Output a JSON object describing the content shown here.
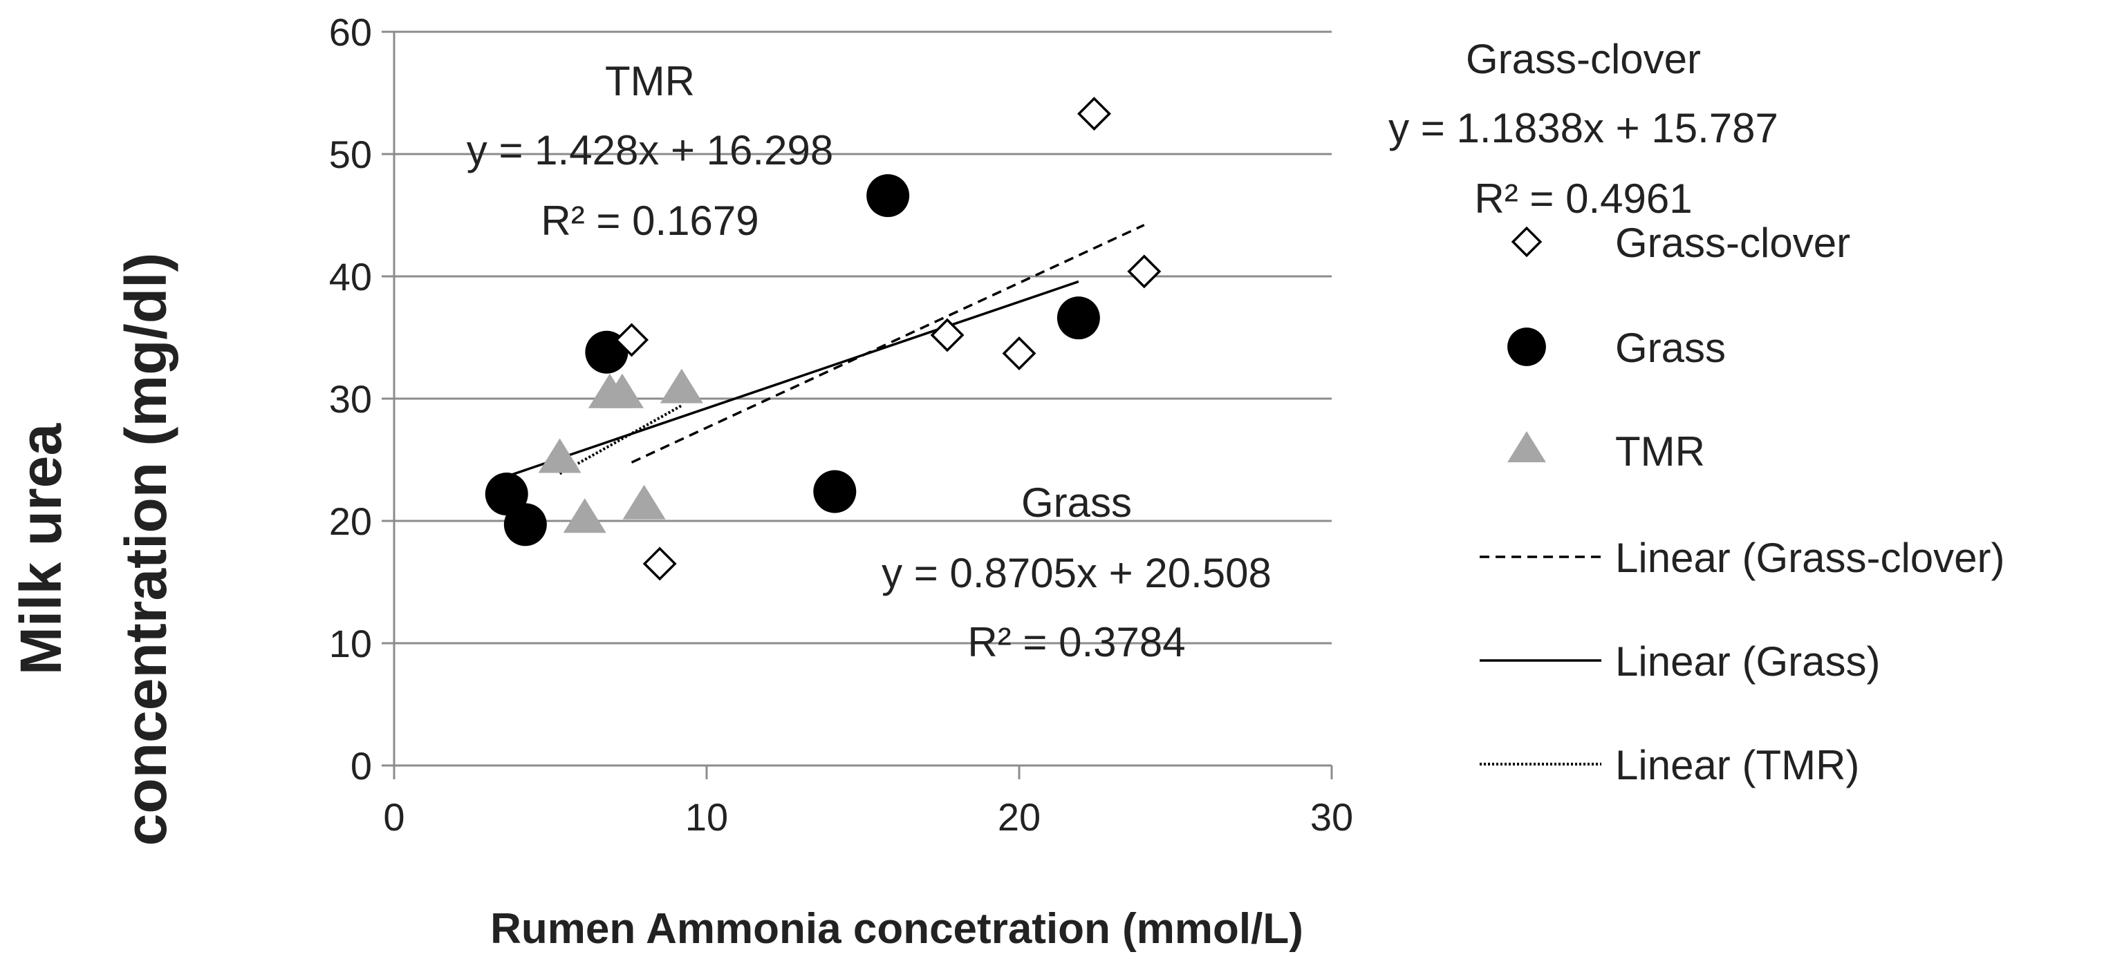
{
  "chart_data": {
    "type": "scatter",
    "title": "",
    "xlabel": "Rumen Ammonia concetration (mmol/L)",
    "ylabel_line1": "Milk urea",
    "ylabel_line2": "concentration (mg/dl)",
    "xlim": [
      0,
      30
    ],
    "ylim": [
      0,
      60
    ],
    "xticks": [
      0,
      10,
      20,
      30
    ],
    "yticks": [
      0,
      10,
      20,
      30,
      40,
      50,
      60
    ],
    "grid": "horizontal",
    "legend_position": "right",
    "series": [
      {
        "name": "Grass-clover",
        "marker": "diamond-open",
        "points": [
          [
            7.6,
            34.8
          ],
          [
            8.5,
            16.5
          ],
          [
            17.7,
            35.2
          ],
          [
            20.0,
            33.7
          ],
          [
            22.4,
            53.3
          ],
          [
            24.0,
            40.4
          ]
        ],
        "trend": {
          "label": "Linear (Grass-clover)",
          "style": "dashed",
          "slope": 1.1838,
          "intercept": 15.787,
          "x_range": [
            7.6,
            24.0
          ]
        }
      },
      {
        "name": "Grass",
        "marker": "circle-filled",
        "points": [
          [
            3.6,
            22.2
          ],
          [
            4.2,
            19.7
          ],
          [
            6.8,
            33.8
          ],
          [
            14.1,
            22.4
          ],
          [
            15.8,
            46.6
          ],
          [
            21.9,
            36.6
          ]
        ],
        "trend": {
          "label": "Linear (Grass)",
          "style": "solid",
          "slope": 0.8705,
          "intercept": 20.508,
          "x_range": [
            3.6,
            21.9
          ]
        }
      },
      {
        "name": "TMR",
        "marker": "triangle-gray",
        "points": [
          [
            5.3,
            25.0
          ],
          [
            6.1,
            20.1
          ],
          [
            6.9,
            30.3
          ],
          [
            7.3,
            30.3
          ],
          [
            8.0,
            21.2
          ],
          [
            9.2,
            30.7
          ]
        ],
        "trend": {
          "label": "Linear (TMR)",
          "style": "dotted",
          "slope": 1.428,
          "intercept": 16.298,
          "x_range": [
            5.3,
            9.2
          ]
        }
      }
    ],
    "annotations": [
      {
        "id": "tmr",
        "lines": [
          "TMR",
          "y = 1.428x + 16.298",
          "R² = 0.1679"
        ]
      },
      {
        "id": "grass-clover",
        "lines": [
          "Grass-clover",
          "y = 1.1838x + 15.787",
          "R² = 0.4961"
        ]
      },
      {
        "id": "grass",
        "lines": [
          "Grass",
          "y = 0.8705x + 20.508",
          "R² = 0.3784"
        ]
      }
    ],
    "colors": {
      "grid": "#8c8c8c",
      "marker_dark": "#000000",
      "marker_gray": "#a6a6a6",
      "line": "#000000"
    }
  }
}
